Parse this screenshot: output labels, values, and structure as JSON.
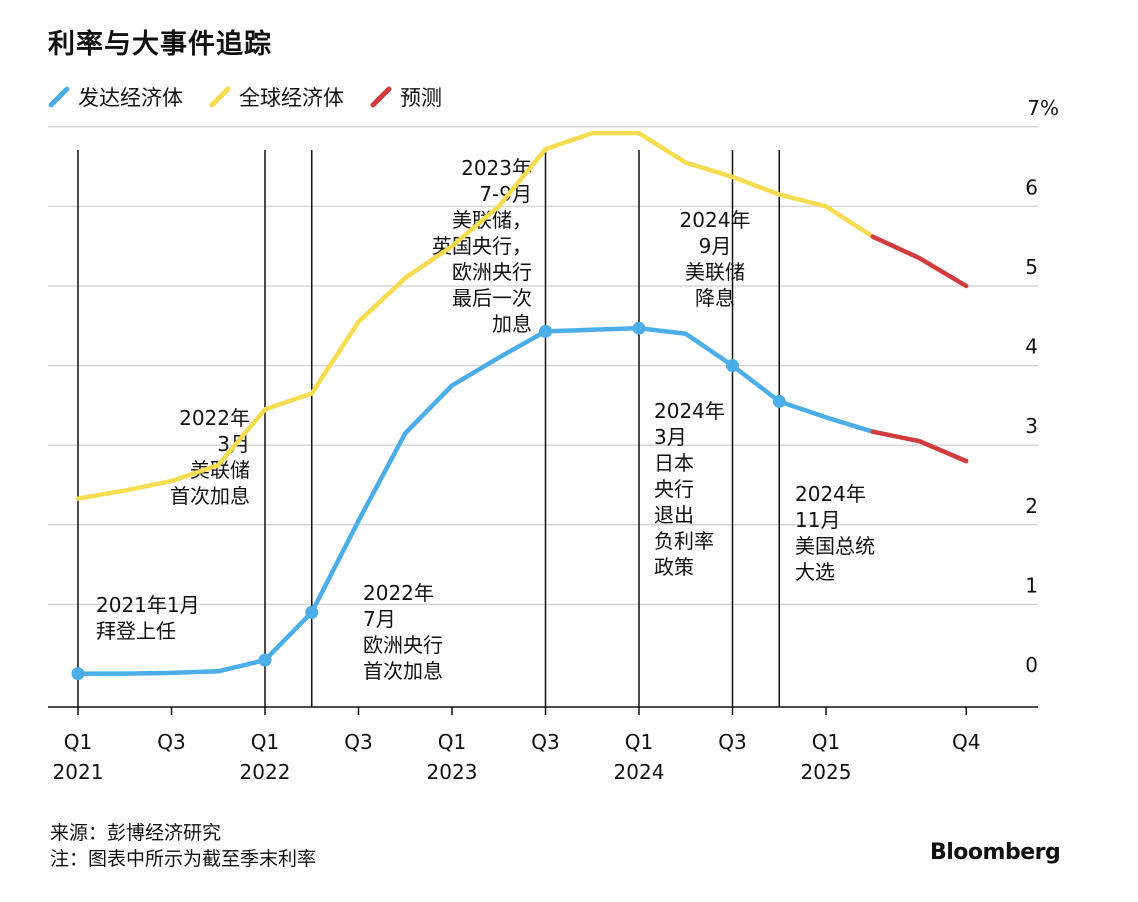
{
  "title": "利率与大事件追踪",
  "legend": [
    {
      "label": "发达经济体",
      "color": "#4baee8"
    },
    {
      "label": "全球经济体",
      "color": "#f5dc50"
    },
    {
      "label": "预测",
      "color": "#d23c3c"
    }
  ],
  "footer": {
    "source": "来源：彭博经济研究",
    "note": "注：图表中所示为截至季末利率"
  },
  "brand": "Bloomberg",
  "chart_data": {
    "type": "line",
    "title": "利率与大事件追踪",
    "x": [
      "2021Q1",
      "2021Q2",
      "2021Q3",
      "2021Q4",
      "2022Q1",
      "2022Q2",
      "2022Q3",
      "2022Q4",
      "2023Q1",
      "2023Q2",
      "2023Q3",
      "2023Q4",
      "2024Q1",
      "2024Q2",
      "2024Q3",
      "2024Q4",
      "2025Q1",
      "2025Q2",
      "2025Q3",
      "2025Q4"
    ],
    "x_tick_labels": [
      {
        "q": "Q1",
        "year": "2021",
        "at": "2021Q1"
      },
      {
        "q": "Q3",
        "year": "",
        "at": "2021Q3"
      },
      {
        "q": "Q1",
        "year": "2022",
        "at": "2022Q1"
      },
      {
        "q": "Q3",
        "year": "",
        "at": "2022Q3"
      },
      {
        "q": "Q1",
        "year": "2023",
        "at": "2023Q1"
      },
      {
        "q": "Q3",
        "year": "",
        "at": "2023Q3"
      },
      {
        "q": "Q1",
        "year": "2024",
        "at": "2024Q1"
      },
      {
        "q": "Q3",
        "year": "",
        "at": "2024Q3"
      },
      {
        "q": "Q1",
        "year": "2025",
        "at": "2025Q1"
      },
      {
        "q": "Q4",
        "year": "",
        "at": "2025Q4"
      }
    ],
    "y_ticks": [
      0,
      1,
      2,
      3,
      4,
      5,
      6,
      7
    ],
    "y_tick_labels": [
      "0",
      "1",
      "2",
      "3",
      "4",
      "5",
      "6",
      "7%"
    ],
    "ylim": [
      -0.3,
      7.2
    ],
    "y_axis_side": "right",
    "grid": true,
    "legend_position": "top-left",
    "series": [
      {
        "name": "发达经济体",
        "color": "#4baee8",
        "values": [
          0.13,
          0.13,
          0.14,
          0.16,
          0.3,
          0.9,
          2.05,
          3.15,
          3.75,
          4.1,
          4.43,
          4.45,
          4.47,
          4.4,
          4.0,
          3.55,
          3.35,
          3.17,
          null,
          null
        ],
        "markers": [
          "2021Q1",
          "2022Q1",
          "2022Q2",
          "2023Q3",
          "2024Q1",
          "2024Q3",
          "2024Q4"
        ]
      },
      {
        "name": "全球经济体",
        "color": "#f5dc50",
        "values": [
          2.33,
          2.43,
          2.55,
          2.75,
          3.45,
          3.65,
          4.55,
          5.1,
          5.5,
          6.0,
          6.72,
          6.92,
          6.92,
          6.55,
          6.37,
          6.15,
          6.0,
          5.62,
          null,
          null
        ]
      },
      {
        "name": "预测",
        "color": "#d23c3c",
        "segments": [
          {
            "of": "发达经济体",
            "x": [
              "2025Q2",
              "2025Q3",
              "2025Q4"
            ],
            "values": [
              3.17,
              3.05,
              2.8
            ]
          },
          {
            "of": "全球经济体",
            "x": [
              "2025Q2",
              "2025Q3",
              "2025Q4"
            ],
            "values": [
              5.62,
              5.35,
              5.0
            ]
          }
        ]
      }
    ],
    "event_lines": [
      {
        "at": "2021Q1",
        "lines": [
          "2021年1月",
          "拜登上任"
        ]
      },
      {
        "at": "2022Q1",
        "lines": [
          "2022年",
          "3月",
          "美联储",
          "首次加息"
        ]
      },
      {
        "at": "2022Q2",
        "lines": [
          "2022年",
          "7月",
          "欧洲央行",
          "首次加息"
        ]
      },
      {
        "at": "2023Q3",
        "lines": [
          "2023年",
          "7-9月",
          "美联储，",
          "英国央行，",
          "欧洲央行",
          "最后一次",
          "加息"
        ]
      },
      {
        "at": "2024Q1",
        "lines": [
          "2024年",
          "3月",
          "日本",
          "央行",
          "退出",
          "负利率",
          "政策"
        ]
      },
      {
        "at": "2024Q3",
        "lines": [
          "2024年",
          "9月",
          "美联储",
          "降息"
        ]
      },
      {
        "at": "2024Q4",
        "lines": [
          "2024年",
          "11月",
          "美国总统",
          "大选"
        ]
      }
    ]
  }
}
